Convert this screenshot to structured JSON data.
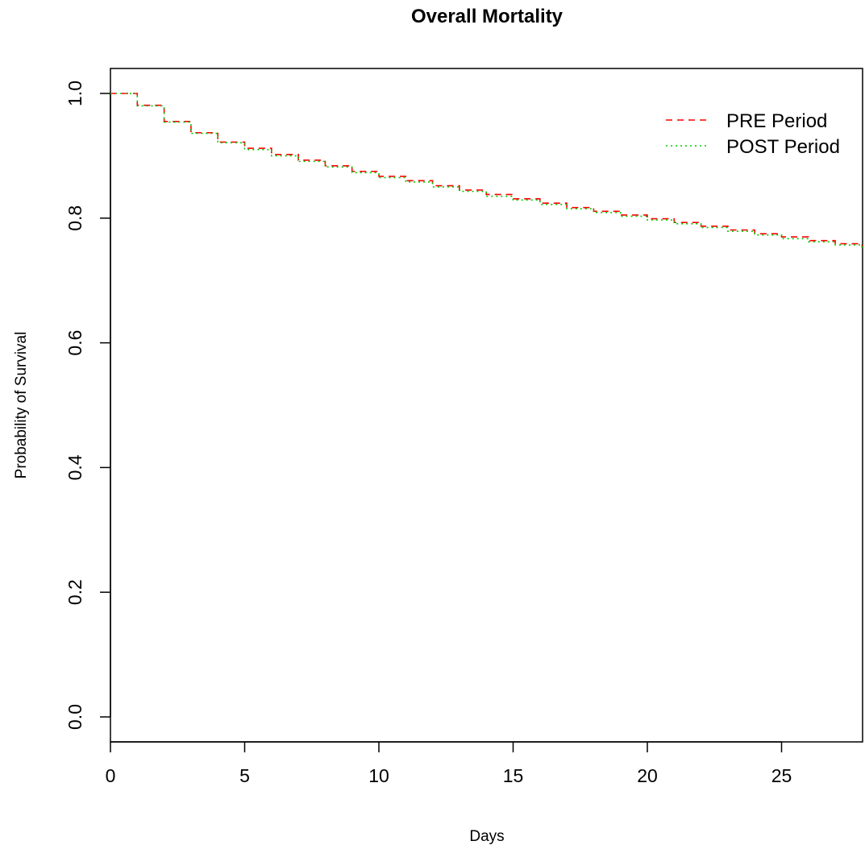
{
  "chart_data": {
    "type": "line",
    "title": "Overall Mortality",
    "xlabel": "Days",
    "ylabel": "Probability of Survival",
    "xlim": [
      0,
      28
    ],
    "ylim": [
      0,
      1
    ],
    "x_ticks": [
      "0",
      "5",
      "10",
      "15",
      "20",
      "25"
    ],
    "y_ticks": [
      "0.0",
      "0.2",
      "0.4",
      "0.6",
      "0.8",
      "1.0"
    ],
    "grid": false,
    "legend_position": "top-right",
    "series": [
      {
        "name": "PRE Period",
        "color": "#ff0000",
        "line_style": "dashed",
        "x": [
          0,
          1,
          2,
          3,
          4,
          5,
          6,
          7,
          8,
          9,
          10,
          11,
          12,
          13,
          14,
          15,
          16,
          17,
          18,
          19,
          20,
          21,
          22,
          23,
          24,
          25,
          26,
          27,
          28
        ],
        "y": [
          1.0,
          0.981,
          0.955,
          0.937,
          0.922,
          0.912,
          0.902,
          0.893,
          0.884,
          0.875,
          0.867,
          0.86,
          0.852,
          0.845,
          0.838,
          0.831,
          0.824,
          0.817,
          0.811,
          0.805,
          0.799,
          0.793,
          0.787,
          0.781,
          0.775,
          0.77,
          0.764,
          0.759,
          0.755
        ]
      },
      {
        "name": "POST Period",
        "color": "#00cc00",
        "line_style": "dotted",
        "x": [
          0,
          1,
          2,
          3,
          4,
          5,
          6,
          7,
          8,
          9,
          10,
          11,
          12,
          13,
          14,
          15,
          16,
          17,
          18,
          19,
          20,
          21,
          22,
          23,
          24,
          25,
          26,
          27,
          28
        ],
        "y": [
          1.0,
          0.98,
          0.954,
          0.936,
          0.921,
          0.91,
          0.9,
          0.891,
          0.882,
          0.873,
          0.865,
          0.858,
          0.85,
          0.843,
          0.835,
          0.829,
          0.822,
          0.815,
          0.809,
          0.803,
          0.797,
          0.791,
          0.785,
          0.779,
          0.773,
          0.767,
          0.762,
          0.757,
          0.753
        ]
      }
    ]
  }
}
